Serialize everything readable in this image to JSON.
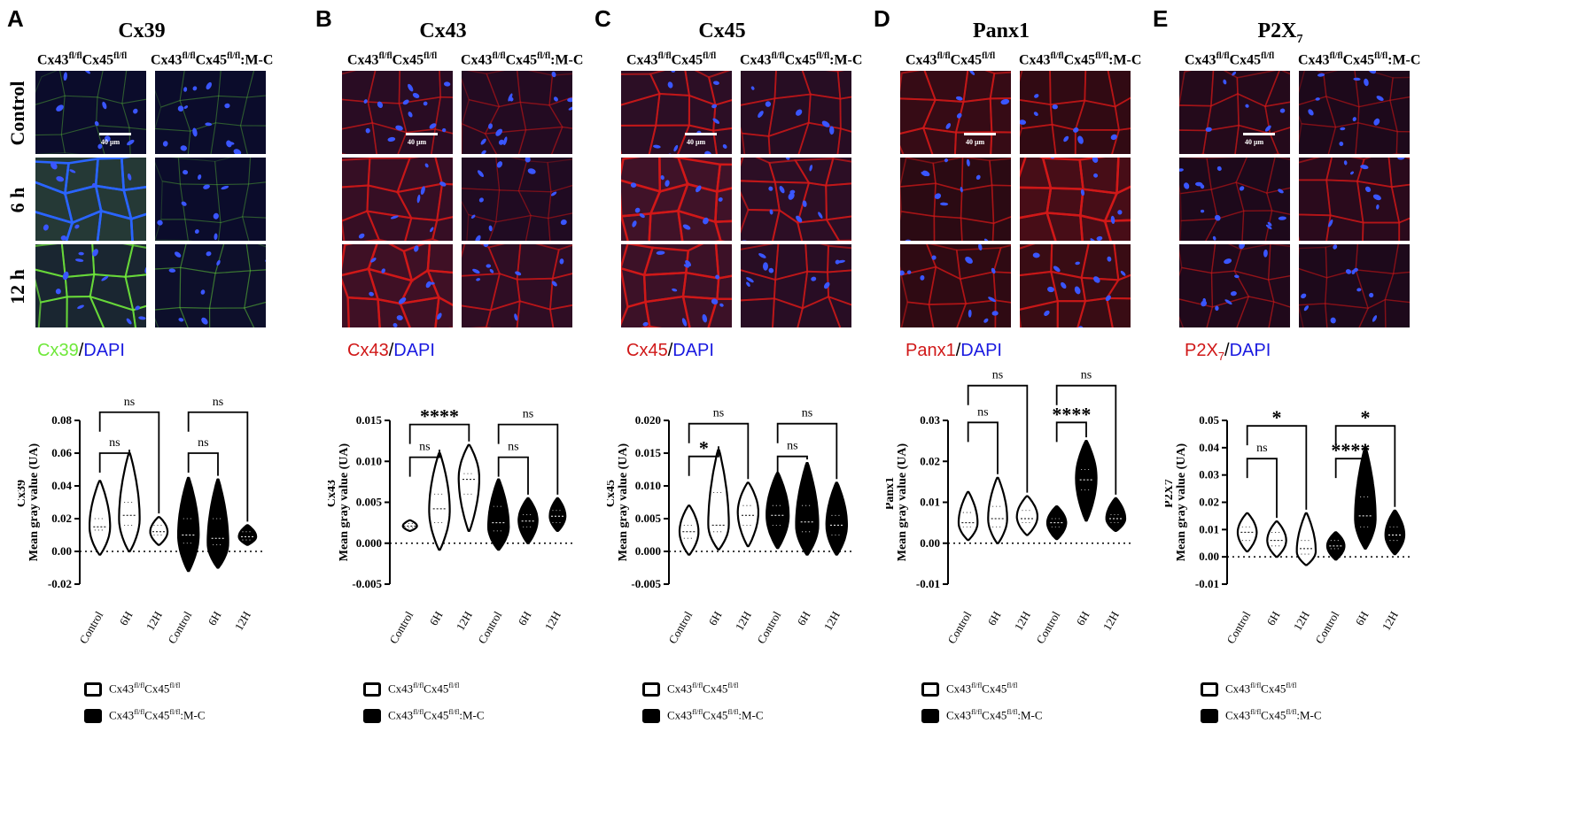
{
  "figure": {
    "panels": [
      {
        "letter": "A",
        "title": "Cx39",
        "title_sub": "",
        "col_headers": [
          {
            "base1": "Cx43",
            "sup1": "fl/fl",
            "base2": "Cx45",
            "sup2": "fl/fl",
            "suffix": ""
          },
          {
            "base1": "Cx43",
            "sup1": "fl/fl",
            "base2": "Cx45",
            "sup2": "fl/fl",
            "suffix": ":M-C"
          }
        ],
        "row_labels": [
          "Control",
          "6 h",
          "12 h"
        ],
        "scale_bar": "40 μm",
        "stain": {
          "marker": "Cx39",
          "marker_sub": "",
          "sep": "/",
          "dapi": "DAPI"
        },
        "colors": {
          "marker": "#6fe83a",
          "dapi": "#1a1ae0",
          "bg": "#0a0a2a",
          "fiber": "#5fa050",
          "nuclei": "#3a56ff"
        },
        "fiber_levels": [
          [
            0.05,
            0.05
          ],
          [
            0.9,
            0.05
          ],
          [
            0.55,
            0.12
          ]
        ]
      },
      {
        "letter": "B",
        "title": "Cx43",
        "title_sub": "",
        "col_headers": [
          {
            "base1": "Cx43",
            "sup1": "fl/fl",
            "base2": "Cx45",
            "sup2": "fl/fl",
            "suffix": ""
          },
          {
            "base1": "Cx43",
            "sup1": "fl/fl",
            "base2": "Cx45",
            "sup2": "fl/fl",
            "suffix": ":M-C"
          }
        ],
        "row_labels": [],
        "scale_bar": "40 μm",
        "stain": {
          "marker": "Cx43",
          "marker_sub": "",
          "sep": "/",
          "dapi": "DAPI"
        },
        "colors": {
          "marker": "#d01818",
          "dapi": "#1a1ae0",
          "bg": "#1a0a22",
          "fiber": "#a02030",
          "nuclei": "#3a56ff"
        },
        "fiber_levels": [
          [
            0.35,
            0.2
          ],
          [
            0.6,
            0.15
          ],
          [
            0.8,
            0.45
          ]
        ]
      },
      {
        "letter": "C",
        "title": "Cx45",
        "title_sub": "",
        "col_headers": [
          {
            "base1": "Cx43",
            "sup1": "fl/fl",
            "base2": "Cx45",
            "sup2": "fl/fl",
            "suffix": ""
          },
          {
            "base1": "Cx43",
            "sup1": "fl/fl",
            "base2": "Cx45",
            "sup2": "fl/fl",
            "suffix": ":M-C"
          }
        ],
        "row_labels": [],
        "scale_bar": "40 μm",
        "stain": {
          "marker": "Cx45",
          "marker_sub": "",
          "sep": "/",
          "dapi": "DAPI"
        },
        "colors": {
          "marker": "#d01818",
          "dapi": "#1a1ae0",
          "bg": "#0a0820",
          "fiber": "#c02a3a",
          "nuclei": "#3a56ff"
        },
        "fiber_levels": [
          [
            0.55,
            0.45
          ],
          [
            0.85,
            0.55
          ],
          [
            0.8,
            0.5
          ]
        ]
      },
      {
        "letter": "D",
        "title": "Panx1",
        "title_sub": "",
        "col_headers": [
          {
            "base1": "Cx43",
            "sup1": "fl/fl",
            "base2": "Cx45",
            "sup2": "fl/fl",
            "suffix": ""
          },
          {
            "base1": "Cx43",
            "sup1": "fl/fl",
            "base2": "Cx45",
            "sup2": "fl/fl",
            "suffix": ":M-C"
          }
        ],
        "row_labels": [],
        "scale_bar": "40 μm",
        "stain": {
          "marker": "Panx1",
          "marker_sub": "",
          "sep": "/",
          "dapi": "DAPI"
        },
        "colors": {
          "marker": "#d01818",
          "dapi": "#1a1ae0",
          "bg": "#1a0810",
          "fiber": "#b01a28",
          "nuclei": "#3a56ff"
        },
        "fiber_levels": [
          [
            0.55,
            0.45
          ],
          [
            0.35,
            0.85
          ],
          [
            0.4,
            0.6
          ]
        ]
      },
      {
        "letter": "E",
        "title": "P2X",
        "title_sub": "7",
        "col_headers": [
          {
            "base1": "Cx43",
            "sup1": "fl/fl",
            "base2": "Cx45",
            "sup2": "fl/fl",
            "suffix": ""
          },
          {
            "base1": "Cx43",
            "sup1": "fl/fl",
            "base2": "Cx45",
            "sup2": "fl/fl",
            "suffix": ":M-C"
          }
        ],
        "row_labels": [],
        "scale_bar": "40 μm",
        "stain": {
          "marker": "P2X",
          "marker_sub": "7",
          "sep": "/",
          "dapi": "DAPI"
        },
        "colors": {
          "marker": "#d01818",
          "dapi": "#1a1ae0",
          "bg": "#14081a",
          "fiber": "#a01a2a",
          "nuclei": "#3a56ff"
        },
        "fiber_levels": [
          [
            0.35,
            0.2
          ],
          [
            0.2,
            0.45
          ],
          [
            0.25,
            0.2
          ]
        ]
      }
    ],
    "legend": {
      "item1": {
        "base1": "Cx43",
        "sup1": "fl/fl",
        "base2": "Cx45",
        "sup2": "fl/fl",
        "suffix": ""
      },
      "item2": {
        "base1": "Cx43",
        "sup1": "fl/fl",
        "base2": "Cx45",
        "sup2": "fl/fl",
        "suffix": ":M-C"
      }
    }
  },
  "chart_data": [
    {
      "type": "violin",
      "panel": "A",
      "ylabel_line1": "Mean gray value (UA)",
      "ylabel_line2": "Cx39",
      "ylim": [
        -0.02,
        0.08
      ],
      "yticks": [
        "-0.02",
        "0.00",
        "0.02",
        "0.04",
        "0.06",
        "0.08"
      ],
      "ytick_values": [
        -0.02,
        0,
        0.02,
        0.04,
        0.06,
        0.08
      ],
      "categories": [
        "Control",
        "6H",
        "12H",
        "Control",
        "6H",
        "12H"
      ],
      "groups": [
        "open",
        "open",
        "open",
        "filled",
        "filled",
        "filled"
      ],
      "violins": [
        {
          "min": -0.002,
          "max": 0.043,
          "median": 0.015,
          "q1": 0.013,
          "q3": 0.02,
          "mode": 0.015,
          "width": 0.6
        },
        {
          "min": 0.0,
          "max": 0.06,
          "median": 0.022,
          "q1": 0.016,
          "q3": 0.03,
          "mode": 0.02,
          "width": 0.6
        },
        {
          "min": 0.004,
          "max": 0.021,
          "median": 0.012,
          "q1": 0.01,
          "q3": 0.016,
          "mode": 0.012,
          "width": 0.5
        },
        {
          "min": -0.012,
          "max": 0.045,
          "median": 0.01,
          "q1": 0.005,
          "q3": 0.02,
          "mode": 0.01,
          "width": 0.6
        },
        {
          "min": -0.01,
          "max": 0.044,
          "median": 0.008,
          "q1": 0.004,
          "q3": 0.02,
          "mode": 0.005,
          "width": 0.6
        },
        {
          "min": 0.004,
          "max": 0.016,
          "median": 0.009,
          "q1": 0.007,
          "q3": 0.012,
          "mode": 0.009,
          "width": 0.5
        }
      ],
      "brackets": [
        {
          "from": 0,
          "to": 1,
          "y": 0.06,
          "label": "ns"
        },
        {
          "from": 0,
          "to": 2,
          "y": 0.085,
          "label": "ns"
        },
        {
          "from": 3,
          "to": 4,
          "y": 0.06,
          "label": "ns"
        },
        {
          "from": 3,
          "to": 5,
          "y": 0.085,
          "label": "ns"
        }
      ]
    },
    {
      "type": "violin",
      "panel": "B",
      "ylabel_line1": "Mean gray value (UA)",
      "ylabel_line2": "Cx43",
      "ylim": [
        -0.005,
        0.015
      ],
      "yticks": [
        "-0.005",
        "0.000",
        "0.005",
        "0.010",
        "0.015"
      ],
      "ytick_values": [
        -0.005,
        0,
        0.005,
        0.01,
        0.015
      ],
      "categories": [
        "Control",
        "6H",
        "12H",
        "Control",
        "6H",
        "12H"
      ],
      "groups": [
        "open",
        "open",
        "open",
        "filled",
        "filled",
        "filled"
      ],
      "violins": [
        {
          "min": 0.0015,
          "max": 0.0028,
          "median": 0.0021,
          "q1": 0.0019,
          "q3": 0.0024,
          "mode": 0.0021,
          "width": 0.4
        },
        {
          "min": -0.0008,
          "max": 0.011,
          "median": 0.0042,
          "q1": 0.0025,
          "q3": 0.006,
          "mode": 0.004,
          "width": 0.6
        },
        {
          "min": 0.0015,
          "max": 0.012,
          "median": 0.0078,
          "q1": 0.006,
          "q3": 0.0085,
          "mode": 0.008,
          "width": 0.6
        },
        {
          "min": -0.0008,
          "max": 0.0078,
          "median": 0.0025,
          "q1": 0.0015,
          "q3": 0.0045,
          "mode": 0.002,
          "width": 0.6
        },
        {
          "min": 0.0,
          "max": 0.0055,
          "median": 0.0027,
          "q1": 0.002,
          "q3": 0.0035,
          "mode": 0.0028,
          "width": 0.55
        },
        {
          "min": 0.0015,
          "max": 0.0055,
          "median": 0.0033,
          "q1": 0.0025,
          "q3": 0.004,
          "mode": 0.0033,
          "width": 0.45
        }
      ],
      "brackets": [
        {
          "from": 0,
          "to": 1,
          "y": 0.0105,
          "label": "ns"
        },
        {
          "from": 0,
          "to": 2,
          "y": 0.0145,
          "label": "****"
        },
        {
          "from": 3,
          "to": 4,
          "y": 0.0105,
          "label": "ns"
        },
        {
          "from": 3,
          "to": 5,
          "y": 0.0145,
          "label": "ns"
        }
      ]
    },
    {
      "type": "violin",
      "panel": "C",
      "ylabel_line1": "Mean gray value (UA)",
      "ylabel_line2": "Cx45",
      "ylim": [
        -0.005,
        0.02
      ],
      "yticks": [
        "-0.005",
        "0.000",
        "0.005",
        "0.010",
        "0.015",
        "0.020"
      ],
      "ytick_values": [
        -0.005,
        0,
        0.005,
        0.01,
        0.015,
        0.02
      ],
      "categories": [
        "Control",
        "6H",
        "12H",
        "Control",
        "6H",
        "12H"
      ],
      "groups": [
        "open",
        "open",
        "open",
        "filled",
        "filled",
        "filled"
      ],
      "violins": [
        {
          "min": -0.0005,
          "max": 0.007,
          "median": 0.003,
          "q1": 0.002,
          "q3": 0.004,
          "mode": 0.003,
          "width": 0.55
        },
        {
          "min": 0.0003,
          "max": 0.0155,
          "median": 0.004,
          "q1": 0.003,
          "q3": 0.009,
          "mode": 0.004,
          "width": 0.6
        },
        {
          "min": 0.0008,
          "max": 0.0105,
          "median": 0.0055,
          "q1": 0.004,
          "q3": 0.007,
          "mode": 0.006,
          "width": 0.6
        },
        {
          "min": 0.0005,
          "max": 0.012,
          "median": 0.0055,
          "q1": 0.004,
          "q3": 0.007,
          "mode": 0.0055,
          "width": 0.65
        },
        {
          "min": -0.0005,
          "max": 0.0135,
          "median": 0.0045,
          "q1": 0.003,
          "q3": 0.007,
          "mode": 0.004,
          "width": 0.65
        },
        {
          "min": -0.0005,
          "max": 0.0105,
          "median": 0.004,
          "q1": 0.0025,
          "q3": 0.0055,
          "mode": 0.004,
          "width": 0.6
        }
      ],
      "brackets": [
        {
          "from": 0,
          "to": 1,
          "y": 0.0145,
          "label": "*"
        },
        {
          "from": 0,
          "to": 2,
          "y": 0.0195,
          "label": "ns"
        },
        {
          "from": 3,
          "to": 4,
          "y": 0.0145,
          "label": "ns"
        },
        {
          "from": 3,
          "to": 5,
          "y": 0.0195,
          "label": "ns"
        }
      ]
    },
    {
      "type": "violin",
      "panel": "D",
      "ylabel_line1": "Mean gray value (UA)",
      "ylabel_line2": "Panx1",
      "ylim": [
        -0.01,
        0.03
      ],
      "yticks": [
        "-0.01",
        "0.00",
        "0.01",
        "0.02",
        "0.03"
      ],
      "ytick_values": [
        -0.01,
        0,
        0.01,
        0.02,
        0.03
      ],
      "categories": [
        "Control",
        "6H",
        "12H",
        "Control",
        "6H",
        "12H"
      ],
      "groups": [
        "open",
        "open",
        "open",
        "filled",
        "filled",
        "filled"
      ],
      "violins": [
        {
          "min": 0.0008,
          "max": 0.0125,
          "median": 0.005,
          "q1": 0.004,
          "q3": 0.0075,
          "mode": 0.005,
          "width": 0.55
        },
        {
          "min": 0.0,
          "max": 0.016,
          "median": 0.006,
          "q1": 0.004,
          "q3": 0.009,
          "mode": 0.006,
          "width": 0.55
        },
        {
          "min": 0.002,
          "max": 0.0115,
          "median": 0.006,
          "q1": 0.005,
          "q3": 0.008,
          "mode": 0.0065,
          "width": 0.6
        },
        {
          "min": 0.001,
          "max": 0.009,
          "median": 0.005,
          "q1": 0.004,
          "q3": 0.006,
          "mode": 0.005,
          "width": 0.55
        },
        {
          "min": 0.0055,
          "max": 0.025,
          "median": 0.0155,
          "q1": 0.013,
          "q3": 0.018,
          "mode": 0.016,
          "width": 0.6
        },
        {
          "min": 0.003,
          "max": 0.011,
          "median": 0.006,
          "q1": 0.005,
          "q3": 0.007,
          "mode": 0.006,
          "width": 0.55
        }
      ],
      "brackets": [
        {
          "from": 0,
          "to": 1,
          "y": 0.0295,
          "label": "ns"
        },
        {
          "from": 0,
          "to": 2,
          "y": 0.0385,
          "label": "ns"
        },
        {
          "from": 3,
          "to": 4,
          "y": 0.0295,
          "label": "****"
        },
        {
          "from": 3,
          "to": 5,
          "y": 0.0385,
          "label": "ns"
        }
      ]
    },
    {
      "type": "violin",
      "panel": "E",
      "ylabel_line1": "Mean gray value (UA)",
      "ylabel_line2": "P2X7",
      "ylim": [
        -0.01,
        0.05
      ],
      "yticks": [
        "-0.01",
        "0.00",
        "0.01",
        "0.02",
        "0.03",
        "0.04",
        "0.05"
      ],
      "ytick_values": [
        -0.01,
        0,
        0.01,
        0.02,
        0.03,
        0.04,
        0.05
      ],
      "categories": [
        "Control",
        "6H",
        "12H",
        "Control",
        "6H",
        "12H"
      ],
      "groups": [
        "open",
        "open",
        "open",
        "filled",
        "filled",
        "filled"
      ],
      "violins": [
        {
          "min": 0.002,
          "max": 0.016,
          "median": 0.009,
          "q1": 0.006,
          "q3": 0.011,
          "mode": 0.009,
          "width": 0.55
        },
        {
          "min": 0.0,
          "max": 0.013,
          "median": 0.006,
          "q1": 0.004,
          "q3": 0.009,
          "mode": 0.006,
          "width": 0.55
        },
        {
          "min": -0.003,
          "max": 0.016,
          "median": 0.003,
          "q1": 0.001,
          "q3": 0.006,
          "mode": 0.002,
          "width": 0.55
        },
        {
          "min": -0.001,
          "max": 0.009,
          "median": 0.004,
          "q1": 0.003,
          "q3": 0.006,
          "mode": 0.004,
          "width": 0.5
        },
        {
          "min": 0.003,
          "max": 0.04,
          "median": 0.015,
          "q1": 0.011,
          "q3": 0.022,
          "mode": 0.014,
          "width": 0.6
        },
        {
          "min": 0.001,
          "max": 0.017,
          "median": 0.008,
          "q1": 0.006,
          "q3": 0.011,
          "mode": 0.008,
          "width": 0.55
        }
      ],
      "brackets": [
        {
          "from": 0,
          "to": 1,
          "y": 0.036,
          "label": "ns"
        },
        {
          "from": 0,
          "to": 2,
          "y": 0.048,
          "label": "*"
        },
        {
          "from": 3,
          "to": 4,
          "y": 0.036,
          "label": "****"
        },
        {
          "from": 3,
          "to": 5,
          "y": 0.048,
          "label": "*"
        }
      ]
    }
  ]
}
